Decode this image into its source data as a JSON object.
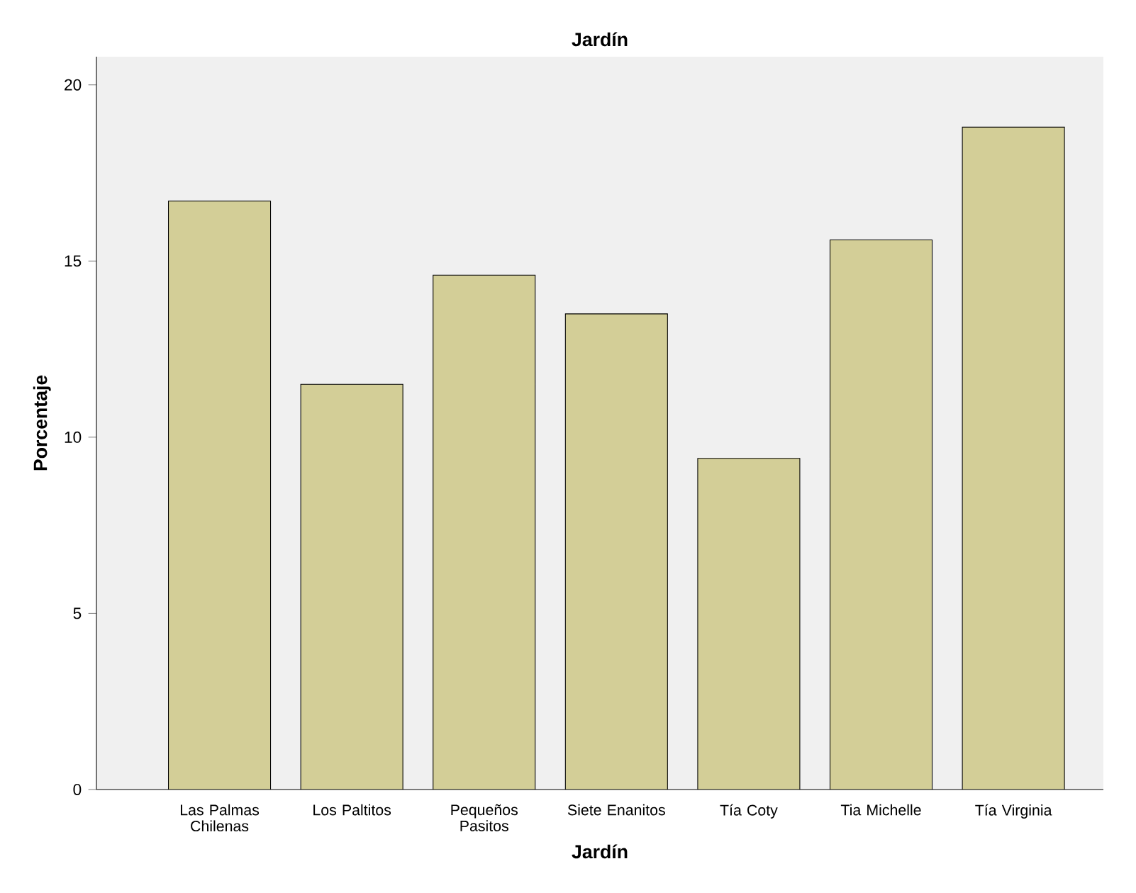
{
  "chart_data": {
    "type": "bar",
    "title": "Jardín",
    "xlabel": "Jardín",
    "ylabel": "Porcentaje",
    "categories": [
      "Las Palmas Chilenas",
      "Los Paltitos",
      "Pequeños Pasitos",
      "Siete Enanitos",
      "Tía Coty",
      "Tia Michelle",
      "Tía Virginia"
    ],
    "values": [
      16.7,
      11.5,
      14.6,
      13.5,
      9.4,
      15.6,
      18.8
    ],
    "color": "#d3ce97",
    "ylim": [
      0,
      20.8
    ],
    "yticks": [
      0,
      5,
      10,
      15,
      20
    ]
  }
}
